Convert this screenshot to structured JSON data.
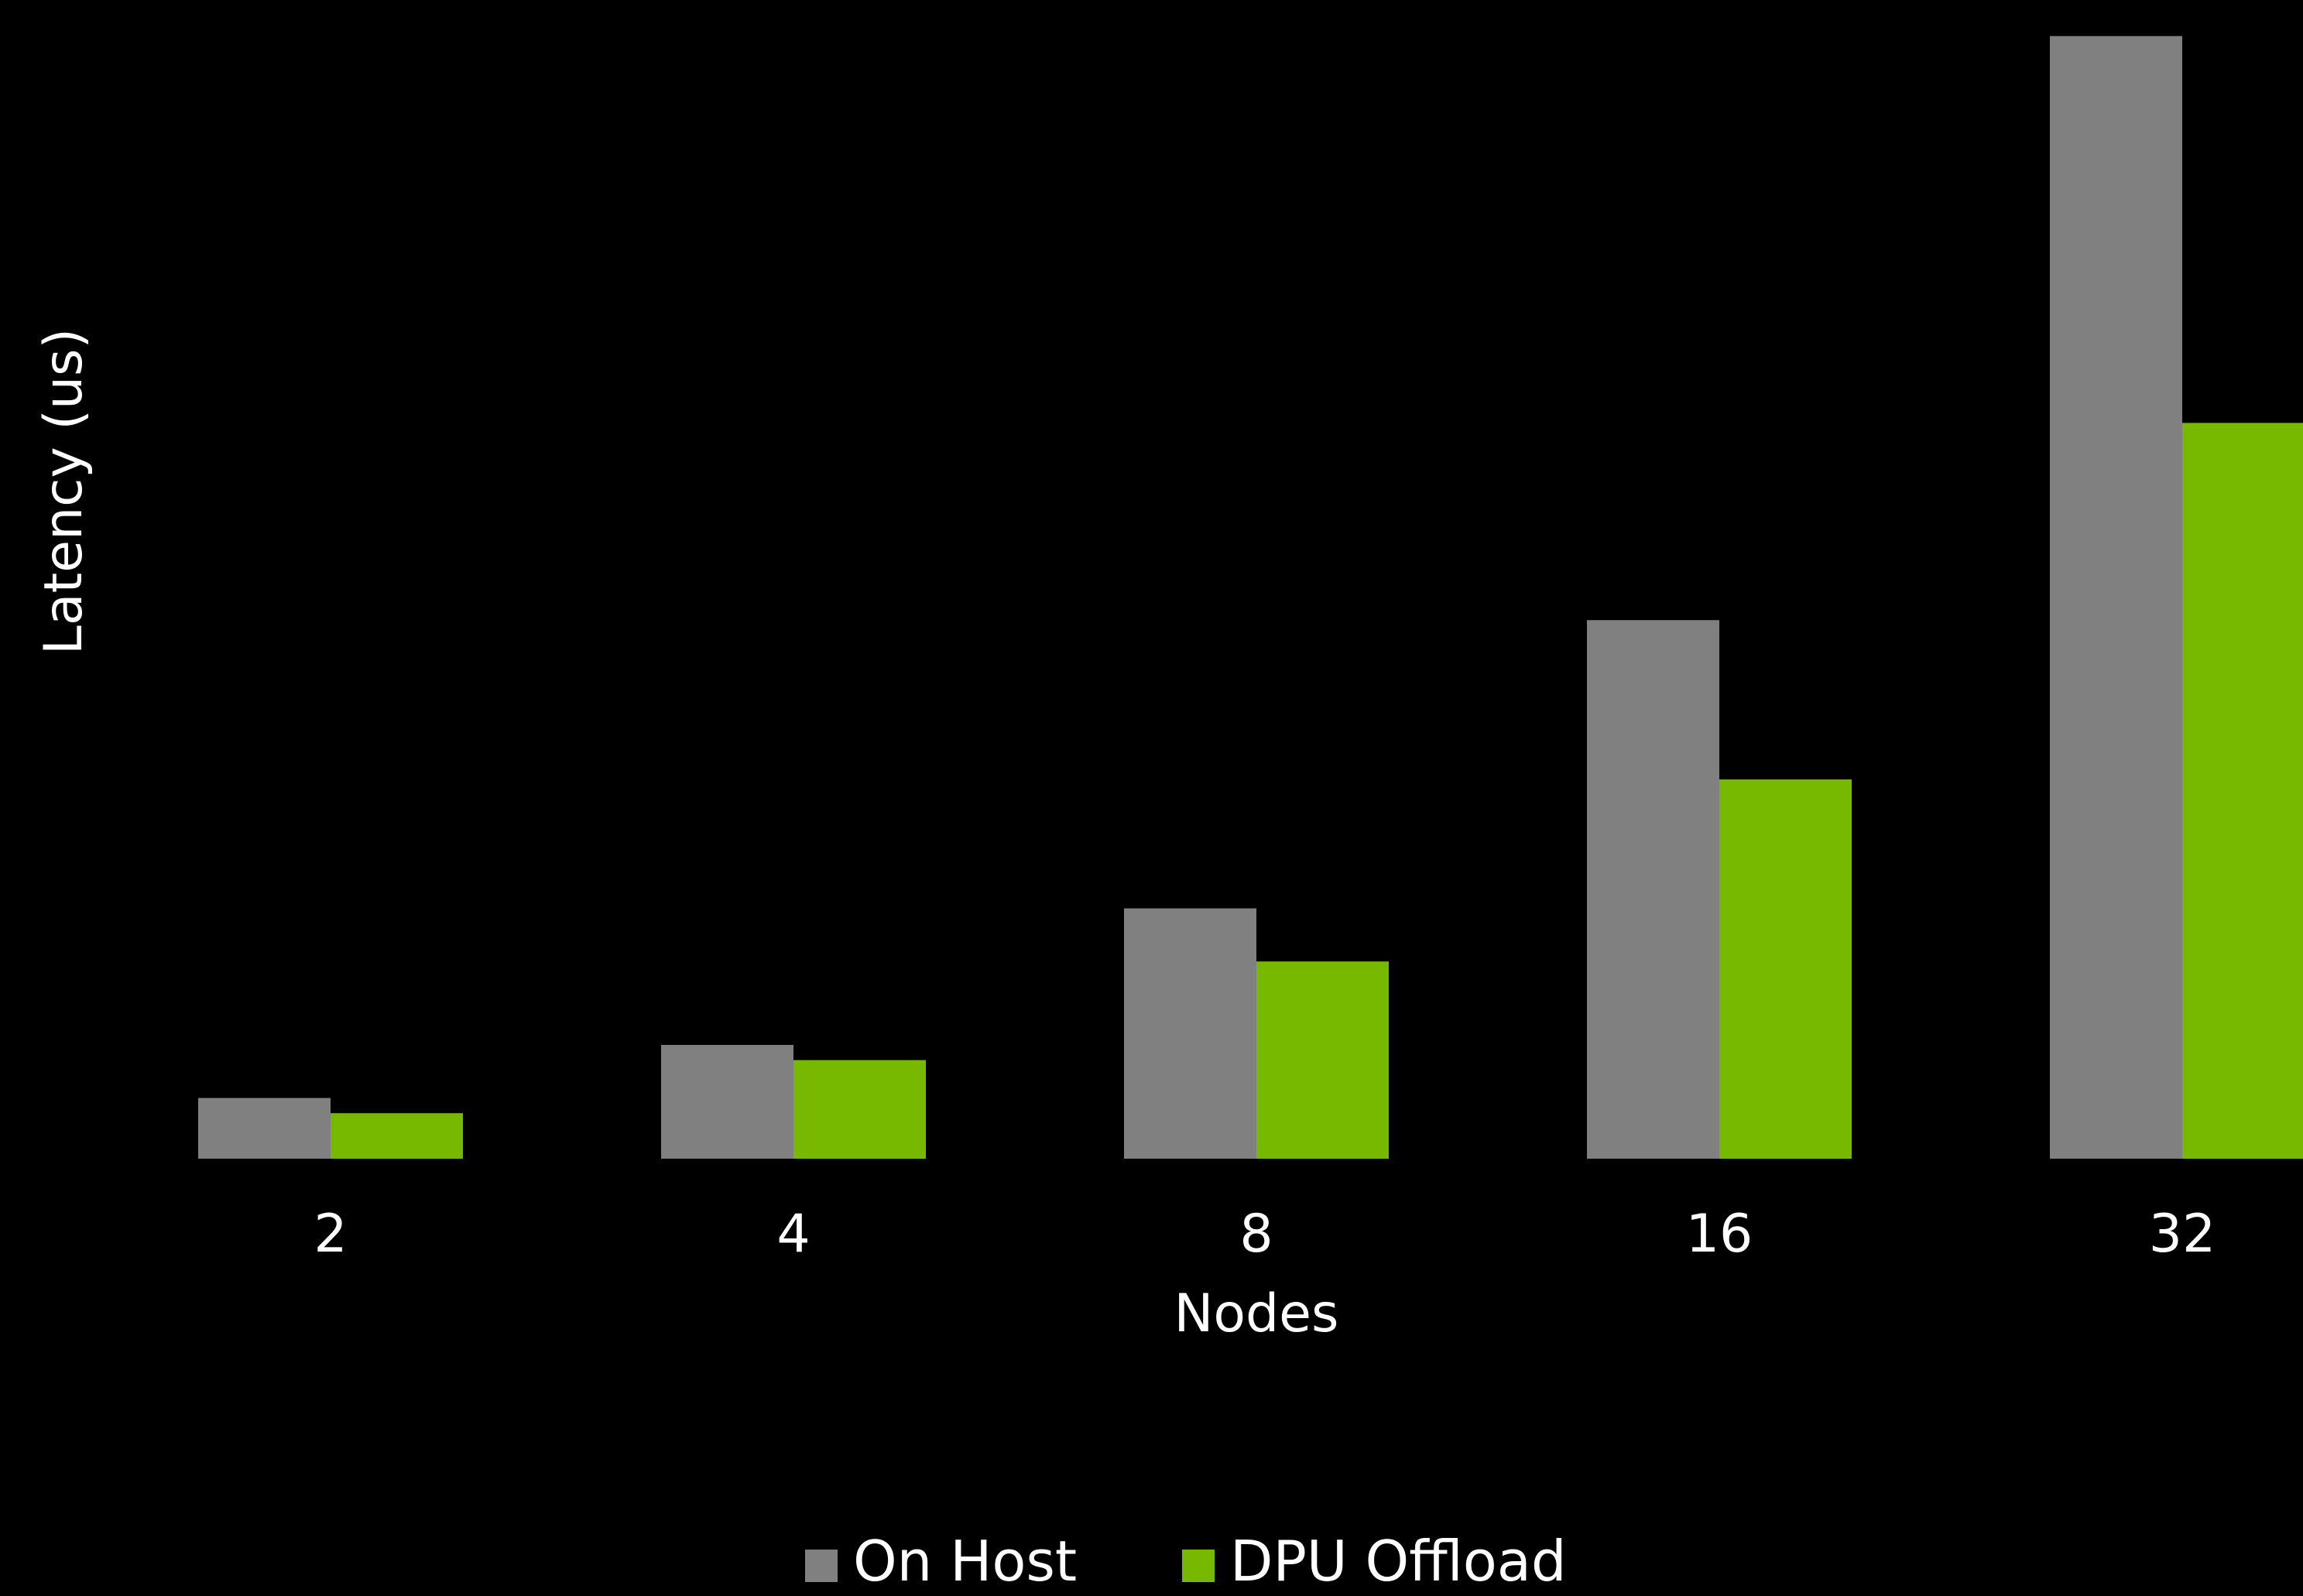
{
  "chart_data": {
    "type": "bar",
    "title": "",
    "xlabel": "Nodes",
    "ylabel": "Latency (us)",
    "categories": [
      "2",
      "4",
      "8",
      "16",
      "32"
    ],
    "series": [
      {
        "name": "On Host",
        "color": "#808080",
        "values": [
          8,
          15,
          33,
          71,
          148
        ]
      },
      {
        "name": "DPU Offload",
        "color": "#76b900",
        "values": [
          6,
          13,
          26,
          50,
          97
        ]
      }
    ],
    "ylim": [
      0,
      150
    ],
    "grid": false,
    "legend_position": "bottom-center"
  }
}
